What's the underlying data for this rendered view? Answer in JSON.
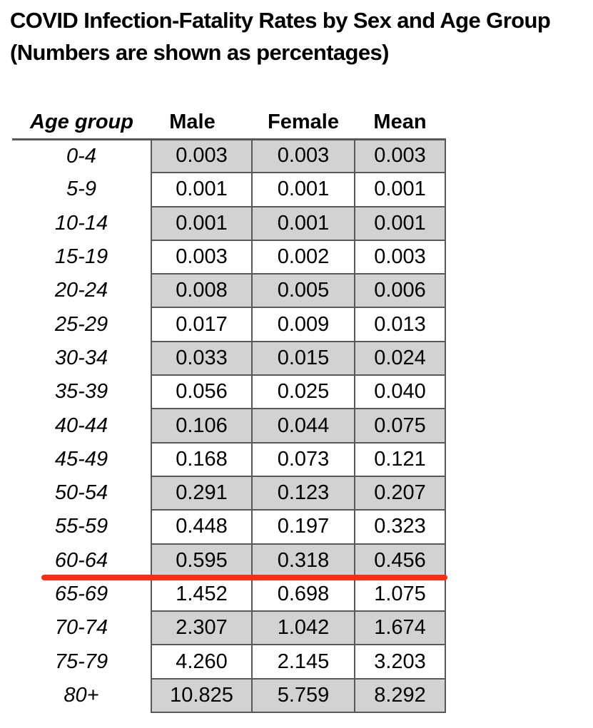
{
  "title": {
    "line1": "COVID Infection-Fatality Rates by Sex and Age Group",
    "line2": "(Numbers are shown as percentages)"
  },
  "table": {
    "headers": {
      "age": "Age group",
      "male": "Male",
      "female": "Female",
      "mean": "Mean"
    },
    "rows": [
      {
        "age": "0-4",
        "male": "0.003",
        "female": "0.003",
        "mean": "0.003",
        "shaded": true
      },
      {
        "age": "5-9",
        "male": "0.001",
        "female": "0.001",
        "mean": "0.001",
        "shaded": false
      },
      {
        "age": "10-14",
        "male": "0.001",
        "female": "0.001",
        "mean": "0.001",
        "shaded": true
      },
      {
        "age": "15-19",
        "male": "0.003",
        "female": "0.002",
        "mean": "0.003",
        "shaded": false
      },
      {
        "age": "20-24",
        "male": "0.008",
        "female": "0.005",
        "mean": "0.006",
        "shaded": true
      },
      {
        "age": "25-29",
        "male": "0.017",
        "female": "0.009",
        "mean": "0.013",
        "shaded": false
      },
      {
        "age": "30-34",
        "male": "0.033",
        "female": "0.015",
        "mean": "0.024",
        "shaded": true
      },
      {
        "age": "35-39",
        "male": "0.056",
        "female": "0.025",
        "mean": "0.040",
        "shaded": false
      },
      {
        "age": "40-44",
        "male": "0.106",
        "female": "0.044",
        "mean": "0.075",
        "shaded": true
      },
      {
        "age": "45-49",
        "male": "0.168",
        "female": "0.073",
        "mean": "0.121",
        "shaded": false
      },
      {
        "age": "50-54",
        "male": "0.291",
        "female": "0.123",
        "mean": "0.207",
        "shaded": true
      },
      {
        "age": "55-59",
        "male": "0.448",
        "female": "0.197",
        "mean": "0.323",
        "shaded": false
      },
      {
        "age": "60-64",
        "male": "0.595",
        "female": "0.318",
        "mean": "0.456",
        "shaded": true
      },
      {
        "age": "65-69",
        "male": "1.452",
        "female": "0.698",
        "mean": "1.075",
        "shaded": false
      },
      {
        "age": "70-74",
        "male": "2.307",
        "female": "1.042",
        "mean": "1.674",
        "shaded": true
      },
      {
        "age": "75-79",
        "male": "4.260",
        "female": "2.145",
        "mean": "3.203",
        "shaded": false
      },
      {
        "age": "80+",
        "male": "10.825",
        "female": "5.759",
        "mean": "8.292",
        "shaded": true
      }
    ],
    "highlight": {
      "description": "red horizontal line separating 60-64 row from 65-69 row",
      "below_age_group": "60-64"
    }
  },
  "colors": {
    "row_shade": "#d2d2d2",
    "border": "#58585a",
    "red_line": "#fa2f14"
  },
  "chart_data": {
    "type": "table",
    "title": "COVID Infection-Fatality Rates by Sex and Age Group",
    "subtitle": "(Numbers are shown as percentages)",
    "columns": [
      "Age group",
      "Male",
      "Female",
      "Mean"
    ],
    "rows": [
      [
        "0-4",
        0.003,
        0.003,
        0.003
      ],
      [
        "5-9",
        0.001,
        0.001,
        0.001
      ],
      [
        "10-14",
        0.001,
        0.001,
        0.001
      ],
      [
        "15-19",
        0.003,
        0.002,
        0.003
      ],
      [
        "20-24",
        0.008,
        0.005,
        0.006
      ],
      [
        "25-29",
        0.017,
        0.009,
        0.013
      ],
      [
        "30-34",
        0.033,
        0.015,
        0.024
      ],
      [
        "35-39",
        0.056,
        0.025,
        0.04
      ],
      [
        "40-44",
        0.106,
        0.044,
        0.075
      ],
      [
        "45-49",
        0.168,
        0.073,
        0.121
      ],
      [
        "50-54",
        0.291,
        0.123,
        0.207
      ],
      [
        "55-59",
        0.448,
        0.197,
        0.323
      ],
      [
        "60-64",
        0.595,
        0.318,
        0.456
      ],
      [
        "65-69",
        1.452,
        0.698,
        1.075
      ],
      [
        "70-74",
        2.307,
        1.042,
        1.674
      ],
      [
        "75-79",
        4.26,
        2.145,
        3.203
      ],
      [
        "80+",
        10.825,
        5.759,
        8.292
      ]
    ],
    "annotations": [
      "thick red horizontal line drawn between the 60-64 and 65-69 rows"
    ],
    "layout_hints": {
      "alternating_row_shading": "gray starting at first data row",
      "age_column_unbordered": true,
      "values_unit": "percent"
    }
  }
}
